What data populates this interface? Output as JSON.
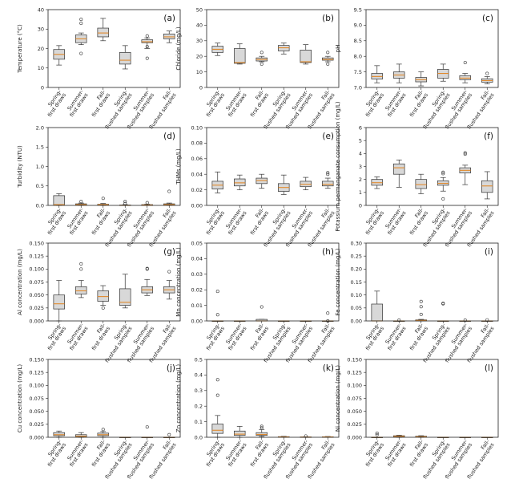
{
  "categories": [
    "Spring-\nfirst draws",
    "Summer-\nfirst draws",
    "Fall-\nfirst draws",
    "Spring-\nflushed samples",
    "Summer-\nflushed samples",
    "Fall-\nflushed samples"
  ],
  "chart_data": [
    {
      "type": "box",
      "panel": "(a)",
      "ylabel": "Temperature (°C)",
      "ylim": [
        0,
        40
      ],
      "yticks": [
        0,
        10,
        20,
        30,
        40
      ],
      "tick_format": "0",
      "series": [
        {
          "whislo": 11.5,
          "q1": 14.5,
          "med": 17,
          "q3": 19.5,
          "whishi": 21.5,
          "fliers": []
        },
        {
          "whislo": 22,
          "q1": 23,
          "med": 25,
          "q3": 27,
          "whishi": 28,
          "fliers": [
            17.5,
            33,
            35
          ]
        },
        {
          "whislo": 24,
          "q1": 26,
          "med": 28,
          "q3": 30.5,
          "whishi": 35.5,
          "fliers": []
        },
        {
          "whislo": 9.5,
          "q1": 12,
          "med": 14,
          "q3": 18,
          "whishi": 21.5,
          "fliers": []
        },
        {
          "whislo": 20,
          "q1": 23,
          "med": 23.5,
          "q3": 24.5,
          "whishi": 25.5,
          "fliers": [
            15,
            21,
            26.5
          ]
        },
        {
          "whislo": 23,
          "q1": 25,
          "med": 26,
          "q3": 27.5,
          "whishi": 29,
          "fliers": []
        }
      ]
    },
    {
      "type": "box",
      "panel": "(b)",
      "ylabel": "Chloride (mg/L)",
      "ylim": [
        0,
        50
      ],
      "yticks": [
        0,
        10,
        20,
        30,
        40,
        50
      ],
      "tick_format": "0",
      "series": [
        {
          "whislo": 20.5,
          "q1": 22.5,
          "med": 24.5,
          "q3": 26.5,
          "whishi": 28.5,
          "fliers": []
        },
        {
          "whislo": 15,
          "q1": 15.5,
          "med": 16,
          "q3": 25,
          "whishi": 28,
          "fliers": []
        },
        {
          "whislo": 16.5,
          "q1": 17,
          "med": 18,
          "q3": 19,
          "whishi": 20,
          "fliers": [
            15,
            22.5
          ]
        },
        {
          "whislo": 21.5,
          "q1": 23.5,
          "med": 25.5,
          "q3": 27,
          "whishi": 28.5,
          "fliers": []
        },
        {
          "whislo": 15,
          "q1": 16,
          "med": 16.5,
          "q3": 24,
          "whishi": 27.5,
          "fliers": []
        },
        {
          "whislo": 16.5,
          "q1": 17.5,
          "med": 18,
          "q3": 19,
          "whishi": 20,
          "fliers": [
            15,
            22.5
          ]
        }
      ]
    },
    {
      "type": "box",
      "panel": "(c)",
      "ylabel": "pH",
      "ylim": [
        7.0,
        9.5
      ],
      "yticks": [
        7.0,
        7.5,
        8.0,
        8.5,
        9.0,
        9.5
      ],
      "tick_format": "0.0",
      "series": [
        {
          "whislo": 7.15,
          "q1": 7.27,
          "med": 7.35,
          "q3": 7.45,
          "whishi": 7.7,
          "fliers": []
        },
        {
          "whislo": 7.15,
          "q1": 7.3,
          "med": 7.4,
          "q3": 7.5,
          "whishi": 7.75,
          "fliers": []
        },
        {
          "whislo": 7.05,
          "q1": 7.18,
          "med": 7.25,
          "q3": 7.32,
          "whishi": 7.5,
          "fliers": []
        },
        {
          "whislo": 7.2,
          "q1": 7.3,
          "med": 7.45,
          "q3": 7.58,
          "whishi": 7.75,
          "fliers": []
        },
        {
          "whislo": 7.15,
          "q1": 7.25,
          "med": 7.3,
          "q3": 7.38,
          "whishi": 7.45,
          "fliers": [
            7.8
          ]
        },
        {
          "whislo": 7.12,
          "q1": 7.17,
          "med": 7.22,
          "q3": 7.28,
          "whishi": 7.35,
          "fliers": [
            7.45
          ]
        }
      ]
    },
    {
      "type": "box",
      "panel": "(d)",
      "ylabel": "Turbidity (NTU)",
      "ylim": [
        0,
        2.0
      ],
      "yticks": [
        0.0,
        0.5,
        1.0,
        1.5,
        2.0
      ],
      "tick_format": "0.0",
      "series": [
        {
          "whislo": 0.0,
          "q1": 0.01,
          "med": 0.02,
          "q3": 0.25,
          "whishi": 0.3,
          "fliers": []
        },
        {
          "whislo": 0.0,
          "q1": 0.01,
          "med": 0.02,
          "q3": 0.04,
          "whishi": 0.06,
          "fliers": [
            0.1
          ]
        },
        {
          "whislo": 0.0,
          "q1": 0.01,
          "med": 0.02,
          "q3": 0.03,
          "whishi": 0.05,
          "fliers": [
            0.18
          ]
        },
        {
          "whislo": 0.0,
          "q1": 0.0,
          "med": 0.0,
          "q3": 0.01,
          "whishi": 0.02,
          "fliers": [
            0.05,
            0.1
          ]
        },
        {
          "whislo": 0.0,
          "q1": 0.0,
          "med": 0.01,
          "q3": 0.02,
          "whishi": 0.03,
          "fliers": [
            0.07
          ]
        },
        {
          "whislo": 0.0,
          "q1": 0.01,
          "med": 0.02,
          "q3": 0.04,
          "whishi": 0.06,
          "fliers": [
            0.36
          ]
        }
      ]
    },
    {
      "type": "box",
      "panel": "(e)",
      "ylabel": "THMs (mg/L)",
      "ylim": [
        0,
        0.1
      ],
      "yticks": [
        0.0,
        0.02,
        0.04,
        0.06,
        0.08,
        0.1
      ],
      "tick_format": "0.00",
      "series": [
        {
          "whislo": 0.016,
          "q1": 0.021,
          "med": 0.026,
          "q3": 0.031,
          "whishi": 0.043,
          "fliers": []
        },
        {
          "whislo": 0.02,
          "q1": 0.025,
          "med": 0.029,
          "q3": 0.034,
          "whishi": 0.039,
          "fliers": []
        },
        {
          "whislo": 0.022,
          "q1": 0.028,
          "med": 0.032,
          "q3": 0.035,
          "whishi": 0.04,
          "fliers": []
        },
        {
          "whislo": 0.014,
          "q1": 0.018,
          "med": 0.023,
          "q3": 0.028,
          "whishi": 0.039,
          "fliers": []
        },
        {
          "whislo": 0.02,
          "q1": 0.024,
          "med": 0.027,
          "q3": 0.031,
          "whishi": 0.036,
          "fliers": []
        },
        {
          "whislo": 0.022,
          "q1": 0.025,
          "med": 0.027,
          "q3": 0.031,
          "whishi": 0.035,
          "fliers": [
            0.04,
            0.042
          ]
        }
      ]
    },
    {
      "type": "box",
      "panel": "(f)",
      "ylabel": "Potassium permanganate consumption (mg/L)",
      "ylim": [
        0,
        6
      ],
      "yticks": [
        0,
        1,
        2,
        3,
        4,
        5,
        6
      ],
      "tick_format": "0",
      "series": [
        {
          "whislo": 1.3,
          "q1": 1.55,
          "med": 1.75,
          "q3": 2.0,
          "whishi": 2.2,
          "fliers": []
        },
        {
          "whislo": 1.4,
          "q1": 2.4,
          "med": 2.9,
          "q3": 3.2,
          "whishi": 3.5,
          "fliers": []
        },
        {
          "whislo": 0.9,
          "q1": 1.3,
          "med": 1.6,
          "q3": 2.0,
          "whishi": 2.4,
          "fliers": []
        },
        {
          "whislo": 1.1,
          "q1": 1.55,
          "med": 1.7,
          "q3": 1.9,
          "whishi": 2.15,
          "fliers": [
            0.5,
            2.45,
            2.55
          ]
        },
        {
          "whislo": 1.6,
          "q1": 2.5,
          "med": 2.7,
          "q3": 2.9,
          "whishi": 3.1,
          "fliers": [
            3.95,
            4.05
          ]
        },
        {
          "whislo": 0.5,
          "q1": 1.0,
          "med": 1.5,
          "q3": 1.9,
          "whishi": 2.6,
          "fliers": []
        }
      ]
    },
    {
      "type": "box",
      "panel": "(g)",
      "ylabel": "Al concentration (mg/L)",
      "ylim": [
        0,
        0.15
      ],
      "yticks": [
        0.0,
        0.025,
        0.05,
        0.075,
        0.1,
        0.125,
        0.15
      ],
      "tick_format": "0.000",
      "series": [
        {
          "whislo": 0.0,
          "q1": 0.023,
          "med": 0.033,
          "q3": 0.05,
          "whishi": 0.078,
          "fliers": []
        },
        {
          "whislo": 0.045,
          "q1": 0.052,
          "med": 0.058,
          "q3": 0.066,
          "whishi": 0.078,
          "fliers": [
            0.1,
            0.11
          ]
        },
        {
          "whislo": 0.03,
          "q1": 0.038,
          "med": 0.047,
          "q3": 0.058,
          "whishi": 0.068,
          "fliers": [
            0.025
          ]
        },
        {
          "whislo": 0.025,
          "q1": 0.03,
          "med": 0.036,
          "q3": 0.062,
          "whishi": 0.09,
          "fliers": []
        },
        {
          "whislo": 0.049,
          "q1": 0.054,
          "med": 0.06,
          "q3": 0.066,
          "whishi": 0.08,
          "fliers": [
            0.1,
            0.101
          ]
        },
        {
          "whislo": 0.042,
          "q1": 0.054,
          "med": 0.06,
          "q3": 0.066,
          "whishi": 0.078,
          "fliers": [
            0.095
          ]
        }
      ]
    },
    {
      "type": "box",
      "panel": "(h)",
      "ylabel": "Mn concentration (mg/L)",
      "ylim": [
        0,
        0.05
      ],
      "yticks": [
        0.0,
        0.01,
        0.02,
        0.03,
        0.04,
        0.05
      ],
      "tick_format": "0.00",
      "series": [
        {
          "whislo": 0.0,
          "q1": 0.0,
          "med": 0.0,
          "q3": 0.0,
          "whishi": 0.0,
          "fliers": [
            0.004,
            0.019
          ]
        },
        {
          "whislo": 0.0,
          "q1": 0.0,
          "med": 0.0,
          "q3": 0.0,
          "whishi": 0.0,
          "fliers": []
        },
        {
          "whislo": 0.0,
          "q1": 0.0,
          "med": 0.0,
          "q3": 0.001,
          "whishi": 0.001,
          "fliers": [
            0.009
          ]
        },
        {
          "whislo": 0.0,
          "q1": 0.0,
          "med": 0.0,
          "q3": 0.0,
          "whishi": 0.0,
          "fliers": []
        },
        {
          "whislo": 0.0,
          "q1": 0.0,
          "med": 0.0,
          "q3": 0.0,
          "whishi": 0.0,
          "fliers": []
        },
        {
          "whislo": 0.0,
          "q1": 0.0,
          "med": 0.0,
          "q3": 0.0,
          "whishi": 0.0,
          "fliers": [
            0.0,
            0.005
          ]
        }
      ]
    },
    {
      "type": "box",
      "panel": "(i)",
      "ylabel": "Fe concentration (mg/L)",
      "ylim": [
        0,
        0.3
      ],
      "yticks": [
        0.0,
        0.05,
        0.1,
        0.15,
        0.2,
        0.25,
        0.3
      ],
      "tick_format": "0.00",
      "series": [
        {
          "whislo": 0.0,
          "q1": 0.0,
          "med": 0.0,
          "q3": 0.065,
          "whishi": 0.115,
          "fliers": []
        },
        {
          "whislo": 0.0,
          "q1": 0.0,
          "med": 0.0,
          "q3": 0.0,
          "whishi": 0.0,
          "fliers": [
            0.003
          ]
        },
        {
          "whislo": 0.0,
          "q1": 0.0,
          "med": 0.002,
          "q3": 0.004,
          "whishi": 0.006,
          "fliers": [
            0.025,
            0.055,
            0.075
          ]
        },
        {
          "whislo": 0.0,
          "q1": 0.0,
          "med": 0.0,
          "q3": 0.0,
          "whishi": 0.0,
          "fliers": [
            0.066,
            0.068
          ]
        },
        {
          "whislo": 0.0,
          "q1": 0.0,
          "med": 0.0,
          "q3": 0.0,
          "whishi": 0.0,
          "fliers": [
            0.003
          ]
        },
        {
          "whislo": 0.0,
          "q1": 0.0,
          "med": 0.0,
          "q3": 0.0,
          "whishi": 0.0,
          "fliers": [
            0.004
          ]
        }
      ]
    },
    {
      "type": "box",
      "panel": "(j)",
      "ylabel": "Cu concentration (mg/L)",
      "ylim": [
        0,
        0.15
      ],
      "yticks": [
        0.0,
        0.025,
        0.05,
        0.075,
        0.1,
        0.125,
        0.15
      ],
      "tick_format": "0.000",
      "series": [
        {
          "whislo": 0.0,
          "q1": 0.003,
          "med": 0.005,
          "q3": 0.009,
          "whishi": 0.012,
          "fliers": []
        },
        {
          "whislo": 0.0,
          "q1": 0.001,
          "med": 0.002,
          "q3": 0.005,
          "whishi": 0.009,
          "fliers": []
        },
        {
          "whislo": 0.0,
          "q1": 0.003,
          "med": 0.005,
          "q3": 0.008,
          "whishi": 0.011,
          "fliers": [
            0.015
          ]
        },
        {
          "whislo": 0.0,
          "q1": 0.0,
          "med": 0.0,
          "q3": 0.0,
          "whishi": 0.0,
          "fliers": []
        },
        {
          "whislo": 0.0,
          "q1": 0.0,
          "med": 0.0,
          "q3": 0.0,
          "whishi": 0.0,
          "fliers": [
            0.02
          ]
        },
        {
          "whislo": 0.0,
          "q1": 0.0,
          "med": 0.0,
          "q3": 0.0,
          "whishi": 0.0,
          "fliers": [
            0.005
          ]
        }
      ]
    },
    {
      "type": "box",
      "panel": "(k)",
      "ylabel": "Zn concentration (mg/L)",
      "ylim": [
        0,
        0.5
      ],
      "yticks": [
        0.0,
        0.1,
        0.2,
        0.3,
        0.4,
        0.5
      ],
      "tick_format": "0.0",
      "series": [
        {
          "whislo": 0.0,
          "q1": 0.025,
          "med": 0.045,
          "q3": 0.085,
          "whishi": 0.14,
          "fliers": [
            0.27,
            0.37
          ]
        },
        {
          "whislo": 0.0,
          "q1": 0.012,
          "med": 0.02,
          "q3": 0.04,
          "whishi": 0.07,
          "fliers": []
        },
        {
          "whislo": 0.005,
          "q1": 0.012,
          "med": 0.018,
          "q3": 0.03,
          "whishi": 0.05,
          "fliers": [
            0.06,
            0.07
          ]
        },
        {
          "whislo": 0.0,
          "q1": 0.001,
          "med": 0.002,
          "q3": 0.004,
          "whishi": 0.006,
          "fliers": []
        },
        {
          "whislo": 0.0,
          "q1": 0.0,
          "med": 0.001,
          "q3": 0.002,
          "whishi": 0.003,
          "fliers": [
            0.008
          ]
        },
        {
          "whislo": 0.0,
          "q1": 0.001,
          "med": 0.002,
          "q3": 0.003,
          "whishi": 0.005,
          "fliers": []
        }
      ]
    },
    {
      "type": "box",
      "panel": "(l)",
      "ylabel": "Ni concentration (mg/L)",
      "ylim": [
        0,
        0.15
      ],
      "yticks": [
        0.0,
        0.025,
        0.05,
        0.075,
        0.1,
        0.125,
        0.15
      ],
      "tick_format": "0.000",
      "series": [
        {
          "whislo": 0.0,
          "q1": 0.0,
          "med": 0.0,
          "q3": 0.0,
          "whishi": 0.0,
          "fliers": [
            0.005,
            0.008
          ]
        },
        {
          "whislo": 0.0,
          "q1": 0.001,
          "med": 0.002,
          "q3": 0.003,
          "whishi": 0.004,
          "fliers": []
        },
        {
          "whislo": 0.0,
          "q1": 0.0005,
          "med": 0.001,
          "q3": 0.002,
          "whishi": 0.003,
          "fliers": []
        },
        {
          "whislo": 0.0,
          "q1": 0.0,
          "med": 0.0,
          "q3": 0.0,
          "whishi": 0.0,
          "fliers": []
        },
        {
          "whislo": 0.0,
          "q1": 0.0,
          "med": 0.0,
          "q3": 0.0,
          "whishi": 0.0,
          "fliers": []
        },
        {
          "whislo": 0.0,
          "q1": 0.0,
          "med": 0.0,
          "q3": 0.0,
          "whishi": 0.0,
          "fliers": []
        }
      ]
    }
  ]
}
